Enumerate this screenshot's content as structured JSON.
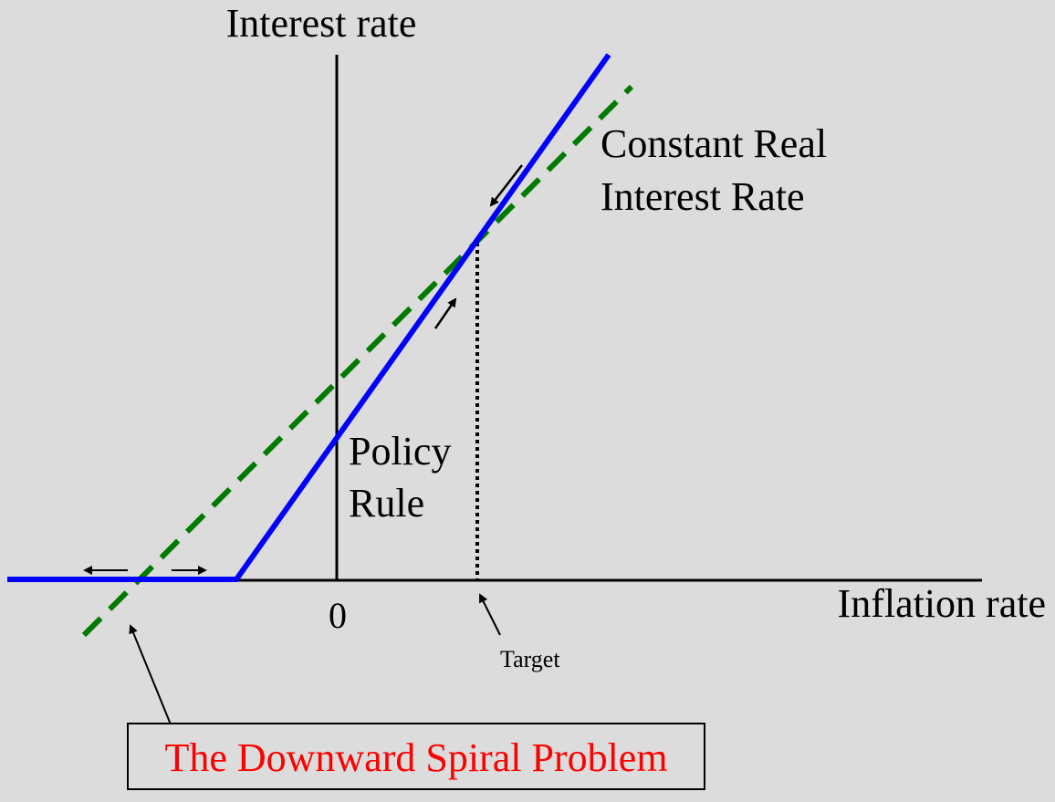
{
  "labels": {
    "y_axis": "Interest rate",
    "x_axis": "Inflation rate",
    "origin": "0",
    "target": "Target",
    "constant_real_line1": "Constant Real",
    "constant_real_line2": "Interest Rate",
    "policy_line1": "Policy",
    "policy_line2": "Rule",
    "callout": "The Downward Spiral Problem"
  },
  "colors": {
    "background": "#dcdcdc",
    "axis": "#000000",
    "policy_rule": "#0000ff",
    "constant_real_rate": "#007a00",
    "callout_text": "#ff0000",
    "callout_border": "#000000",
    "target_line": "#000000",
    "arrows": "#000000"
  }
}
